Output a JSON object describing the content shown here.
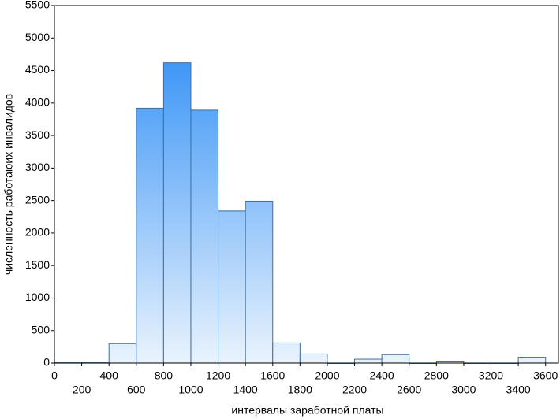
{
  "chart_data": {
    "type": "histogram",
    "x_label": "интервалы заработной платы",
    "y_label": "численность работаюих инвалидов",
    "bins": [
      0,
      200,
      400,
      600,
      800,
      1000,
      1200,
      1400,
      1600,
      1800,
      2000,
      2200,
      2400,
      2600,
      2800,
      3000,
      3200,
      3400,
      3600
    ],
    "values": [
      5,
      5,
      300,
      3920,
      4620,
      3890,
      2340,
      2490,
      310,
      140,
      0,
      60,
      130,
      0,
      30,
      0,
      0,
      90
    ],
    "color": "#1f86f5",
    "color_bottom": "#eaf3fd",
    "edge_color": "#3d6e9e",
    "xlim": [
      0,
      3700
    ],
    "xticks": [
      0,
      200,
      400,
      600,
      800,
      1000,
      1200,
      1400,
      1600,
      1800,
      2000,
      2200,
      2400,
      2600,
      2800,
      3000,
      3200,
      3400,
      3600
    ],
    "ylim": [
      0,
      5500
    ],
    "yticks": [
      0,
      500,
      1000,
      1500,
      2000,
      2500,
      3000,
      3500,
      4000,
      4500,
      5000,
      5500
    ],
    "grid": false
  }
}
